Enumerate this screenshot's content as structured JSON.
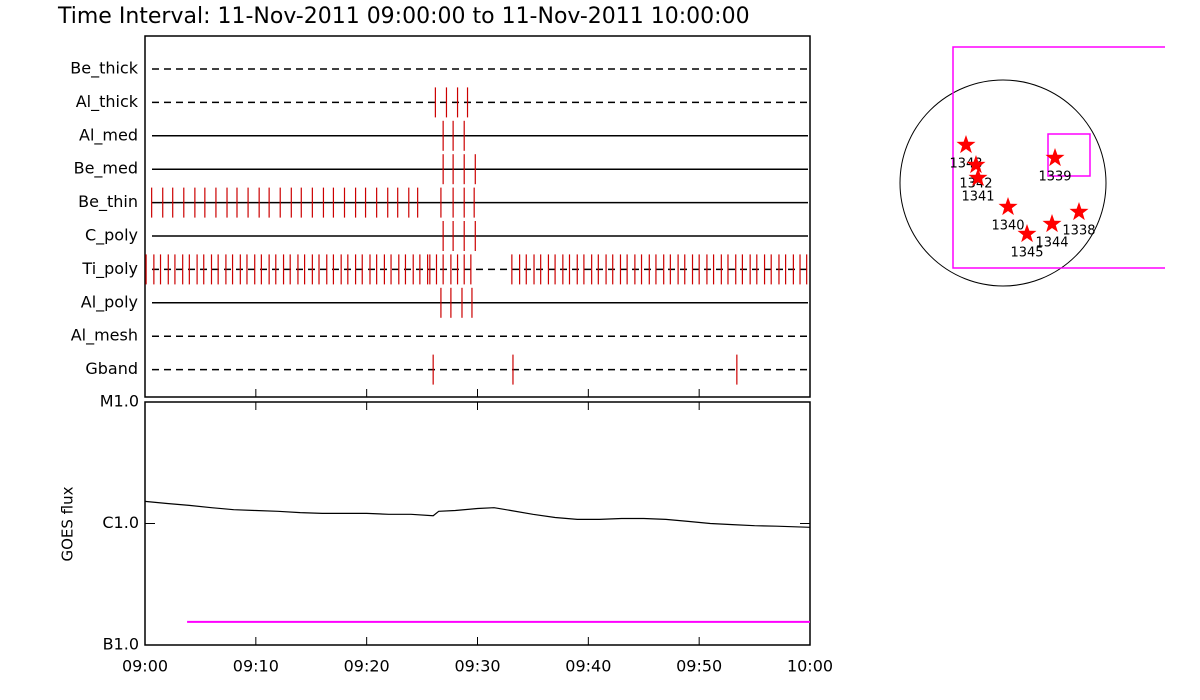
{
  "chart_data": [
    {
      "type": "timeline",
      "title": "Time Interval: 11-Nov-2011 09:00:00 to 11-Nov-2011 10:00:00",
      "categories": [
        "Be_thick",
        "Al_thick",
        "Al_med",
        "Be_med",
        "Be_thin",
        "C_poly",
        "Ti_poly",
        "Al_poly",
        "Al_mesh",
        "Gband"
      ],
      "line_styles": [
        "dashed",
        "dashed",
        "solid",
        "solid",
        "solid",
        "solid",
        "dashed",
        "solid",
        "dashed",
        "dashed"
      ],
      "color": "#cc0000",
      "xlim": [
        0,
        60
      ],
      "events": [
        [],
        [
          26.2,
          27.2,
          28.2,
          29.1
        ],
        [
          26.9,
          27.8,
          28.8
        ],
        [
          26.9,
          27.8,
          28.8,
          29.8
        ],
        [
          0.6,
          1.6,
          2.5,
          3.5,
          4.5,
          5.4,
          6.4,
          7.4,
          8.3,
          9.3,
          10.3,
          11.2,
          12.2,
          13.2,
          14.1,
          15.1,
          16.1,
          17.0,
          18.0,
          19.0,
          19.9,
          20.9,
          21.9,
          22.8,
          23.8,
          24.6,
          26.7,
          27.8,
          28.8,
          29.7
        ],
        [
          26.9,
          27.8,
          28.8,
          29.8
        ],
        [
          0.1,
          0.8,
          1.4,
          2.1,
          2.7,
          3.4,
          4.0,
          4.7,
          5.3,
          6.0,
          6.6,
          7.3,
          7.9,
          8.6,
          9.2,
          9.9,
          10.5,
          11.2,
          11.8,
          12.5,
          13.1,
          13.8,
          14.4,
          15.1,
          15.7,
          16.4,
          17.0,
          17.7,
          18.3,
          19.0,
          19.6,
          20.3,
          20.9,
          21.6,
          22.2,
          22.9,
          23.5,
          24.2,
          24.8,
          25.5,
          25.7,
          26.3,
          26.9,
          27.6,
          28.2,
          28.8,
          29.4,
          33.1,
          33.8,
          34.4,
          35.1,
          35.7,
          36.4,
          37.0,
          37.7,
          38.3,
          39.0,
          39.6,
          40.3,
          40.9,
          41.6,
          42.2,
          42.9,
          43.5,
          44.2,
          44.8,
          45.5,
          46.1,
          46.8,
          47.4,
          48.1,
          48.7,
          49.4,
          50.0,
          50.7,
          51.3,
          52.0,
          52.6,
          53.3,
          53.9,
          54.6,
          55.2,
          55.9,
          56.5,
          57.2,
          57.8,
          58.5,
          59.1,
          59.7
        ],
        [
          26.7,
          27.6,
          28.6,
          29.5
        ],
        [],
        [
          26.0,
          33.2,
          53.4
        ]
      ]
    },
    {
      "type": "line",
      "ylabel": "GOES flux",
      "log_scale": true,
      "xlim": [
        0,
        60
      ],
      "xticks": [
        {
          "value": 0,
          "label": "09:00"
        },
        {
          "value": 10,
          "label": "09:10"
        },
        {
          "value": 20,
          "label": "09:20"
        },
        {
          "value": 30,
          "label": "09:30"
        },
        {
          "value": 40,
          "label": "09:40"
        },
        {
          "value": 50,
          "label": "09:50"
        },
        {
          "value": 60,
          "label": "10:00"
        }
      ],
      "ylim": [
        1e-07,
        1e-05
      ],
      "yticks": [
        {
          "value": 1e-07,
          "label": "B1.0"
        },
        {
          "value": 1e-06,
          "label": "C1.0"
        },
        {
          "value": 1e-05,
          "label": "M1.0"
        }
      ],
      "series": [
        {
          "color": "#000000",
          "x": [
            0,
            2,
            4,
            6,
            8,
            10,
            12,
            14,
            16,
            18,
            20,
            22,
            24,
            26,
            26.5,
            28,
            30,
            31.5,
            33,
            35,
            37,
            39,
            41,
            43,
            45,
            47,
            49,
            51,
            53,
            55,
            57,
            60
          ],
          "values": [
            1.52e-06,
            1.46e-06,
            1.41e-06,
            1.35e-06,
            1.3e-06,
            1.28e-06,
            1.26e-06,
            1.23e-06,
            1.21e-06,
            1.21e-06,
            1.21e-06,
            1.19e-06,
            1.19e-06,
            1.16e-06,
            1.26e-06,
            1.28e-06,
            1.33e-06,
            1.35e-06,
            1.28e-06,
            1.19e-06,
            1.12e-06,
            1.08e-06,
            1.08e-06,
            1.1e-06,
            1.1e-06,
            1.08e-06,
            1.04e-06,
            1e-06,
            9.8e-07,
            9.6e-07,
            9.5e-07,
            9.3e-07
          ]
        },
        {
          "color": "#ff00ff",
          "x": [
            3.8,
            60
          ],
          "values": [
            1.55e-07,
            1.55e-07
          ]
        }
      ]
    },
    {
      "type": "map",
      "color": "#ff0000",
      "points": [
        {
          "label": "1343",
          "x": -345,
          "y": 354
        },
        {
          "label": "1342",
          "x": -252,
          "y": 168
        },
        {
          "label": "1341",
          "x": -233,
          "y": 47
        },
        {
          "label": "1339",
          "x": 485,
          "y": 233
        },
        {
          "label": "1340",
          "x": 47,
          "y": -224
        },
        {
          "label": "1344",
          "x": 457,
          "y": -382
        },
        {
          "label": "1338",
          "x": 708,
          "y": -270
        },
        {
          "label": "1345",
          "x": 224,
          "y": -475
        }
      ]
    }
  ]
}
